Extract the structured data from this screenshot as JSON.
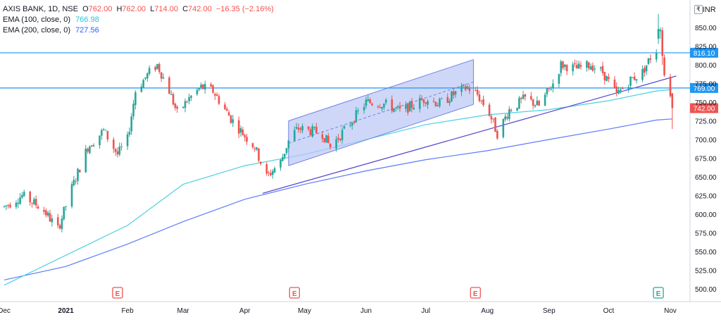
{
  "legend": {
    "symbol": "AXIS BANK, 1D, NSE",
    "ohlc": [
      {
        "label": "O",
        "value": "762.00"
      },
      {
        "label": "H",
        "value": "762.00"
      },
      {
        "label": "L",
        "value": "714.00"
      },
      {
        "label": "C",
        "value": "742.00"
      }
    ],
    "change": "−16.35 (−2.16%)",
    "ema100": {
      "label": "EMA (100, close, 0)",
      "value": "766.98",
      "color": "#26c6da"
    },
    "ema200": {
      "label": "EMA (200, close, 0)",
      "value": "727.56",
      "color": "#2962ff"
    }
  },
  "currency": "INR",
  "currency_prefix": "₹",
  "colors": {
    "up": "#26a69a",
    "down": "#ef5350",
    "hline": "#2196f3",
    "trend": "#5b4ccf",
    "channel_fill": "#b9c6f5",
    "channel_border": "#6f83e0",
    "ema100": "#4dd0e1",
    "ema200": "#5c7cfa",
    "price_tag": "#ef5350",
    "earnings": "#ef5350",
    "earnings_upcoming": "#26a69a"
  },
  "chart_data": {
    "type": "candlestick",
    "y_axis": {
      "min": 488,
      "max": 870,
      "ticks": [
        500,
        525,
        550,
        575,
        600,
        625,
        650,
        675,
        700,
        725,
        750,
        775,
        800,
        825,
        850
      ]
    },
    "x_axis": {
      "start": "2020-12-01",
      "end": "2021-11-04",
      "labels": [
        {
          "text": "Dec",
          "date": "2020-12-01"
        },
        {
          "text": "2021",
          "date": "2021-01-01"
        },
        {
          "text": "Feb",
          "date": "2021-02-01"
        },
        {
          "text": "Mar",
          "date": "2021-03-01"
        },
        {
          "text": "Apr",
          "date": "2021-04-01"
        },
        {
          "text": "May",
          "date": "2021-05-01"
        },
        {
          "text": "Jun",
          "date": "2021-06-01"
        },
        {
          "text": "Jul",
          "date": "2021-07-01"
        },
        {
          "text": "Aug",
          "date": "2021-08-01"
        },
        {
          "text": "Sep",
          "date": "2021-09-01"
        },
        {
          "text": "Oct",
          "date": "2021-10-01"
        },
        {
          "text": "Nov",
          "date": "2021-11-01"
        }
      ]
    },
    "price_anchors": [
      [
        "2020-12-01",
        610
      ],
      [
        "2020-12-10",
        625
      ],
      [
        "2020-12-20",
        608
      ],
      [
        "2020-12-28",
        580
      ],
      [
        "2021-01-04",
        635
      ],
      [
        "2021-01-12",
        690
      ],
      [
        "2021-01-20",
        712
      ],
      [
        "2021-01-27",
        680
      ],
      [
        "2021-02-01",
        700
      ],
      [
        "2021-02-05",
        765
      ],
      [
        "2021-02-12",
        790
      ],
      [
        "2021-02-16",
        800
      ],
      [
        "2021-02-22",
        765
      ],
      [
        "2021-02-26",
        735
      ],
      [
        "2021-03-04",
        755
      ],
      [
        "2021-03-10",
        770
      ],
      [
        "2021-03-16",
        765
      ],
      [
        "2021-03-25",
        728
      ],
      [
        "2021-04-01",
        705
      ],
      [
        "2021-04-06",
        690
      ],
      [
        "2021-04-12",
        650
      ],
      [
        "2021-04-19",
        670
      ],
      [
        "2021-04-24",
        705
      ],
      [
        "2021-04-28",
        715
      ],
      [
        "2021-05-10",
        708
      ],
      [
        "2021-05-14",
        690
      ],
      [
        "2021-05-24",
        722
      ],
      [
        "2021-06-01",
        750
      ],
      [
        "2021-06-10",
        748
      ],
      [
        "2021-06-18",
        738
      ],
      [
        "2021-06-24",
        745
      ],
      [
        "2021-07-01",
        755
      ],
      [
        "2021-07-08",
        748
      ],
      [
        "2021-07-16",
        762
      ],
      [
        "2021-07-22",
        770
      ],
      [
        "2021-07-27",
        760
      ],
      [
        "2021-08-02",
        735
      ],
      [
        "2021-08-06",
        708
      ],
      [
        "2021-08-12",
        740
      ],
      [
        "2021-08-20",
        755
      ],
      [
        "2021-08-27",
        745
      ],
      [
        "2021-09-03",
        775
      ],
      [
        "2021-09-07",
        800
      ],
      [
        "2021-09-15",
        795
      ],
      [
        "2021-09-22",
        800
      ],
      [
        "2021-09-28",
        790
      ],
      [
        "2021-10-05",
        760
      ],
      [
        "2021-10-12",
        780
      ],
      [
        "2021-10-18",
        790
      ],
      [
        "2021-10-22",
        810
      ],
      [
        "2021-10-25",
        820
      ],
      [
        "2021-10-27",
        845
      ],
      [
        "2021-10-28",
        800
      ],
      [
        "2021-11-01",
        758
      ],
      [
        "2021-11-02",
        742
      ]
    ],
    "last_candles": [
      {
        "date": "2021-10-26",
        "o": 835,
        "h": 868,
        "l": 828,
        "c": 848
      },
      {
        "date": "2021-10-27",
        "o": 845,
        "h": 850,
        "l": 835,
        "c": 847
      },
      {
        "date": "2021-10-28",
        "o": 846,
        "h": 850,
        "l": 800,
        "c": 812
      },
      {
        "date": "2021-10-29",
        "o": 810,
        "h": 814,
        "l": 784,
        "c": 786
      },
      {
        "date": "2021-11-01",
        "o": 784,
        "h": 788,
        "l": 756,
        "c": 758
      },
      {
        "date": "2021-11-02",
        "o": 762,
        "h": 762,
        "l": 714,
        "c": 742
      }
    ],
    "ema100_points": [
      [
        "2020-12-01",
        505
      ],
      [
        "2021-01-01",
        545
      ],
      [
        "2021-02-01",
        585
      ],
      [
        "2021-03-01",
        640
      ],
      [
        "2021-04-01",
        665
      ],
      [
        "2021-05-01",
        680
      ],
      [
        "2021-06-01",
        700
      ],
      [
        "2021-07-01",
        720
      ],
      [
        "2021-08-01",
        733
      ],
      [
        "2021-09-01",
        740
      ],
      [
        "2021-10-01",
        752
      ],
      [
        "2021-10-25",
        765
      ],
      [
        "2021-11-02",
        767
      ]
    ],
    "ema200_points": [
      [
        "2020-12-01",
        512
      ],
      [
        "2021-01-01",
        530
      ],
      [
        "2021-02-01",
        560
      ],
      [
        "2021-03-01",
        590
      ],
      [
        "2021-04-01",
        620
      ],
      [
        "2021-05-01",
        640
      ],
      [
        "2021-06-01",
        658
      ],
      [
        "2021-07-01",
        673
      ],
      [
        "2021-08-01",
        685
      ],
      [
        "2021-09-01",
        700
      ],
      [
        "2021-10-01",
        714
      ],
      [
        "2021-10-25",
        726
      ],
      [
        "2021-11-02",
        727.5
      ]
    ],
    "horizontal_levels": [
      {
        "value": 816.1,
        "label": "816.10"
      },
      {
        "value": 769.0,
        "label": "769.00"
      }
    ],
    "current_price": {
      "value": 742.0,
      "label": "742.00"
    },
    "trendline": {
      "x1": "2021-04-10",
      "y1": 628,
      "x2": "2021-11-04",
      "y2": 785
    },
    "channel": {
      "upper": [
        [
          "2021-04-23",
          725
        ],
        [
          "2021-07-25",
          807
        ]
      ],
      "lower": [
        [
          "2021-04-23",
          665
        ],
        [
          "2021-07-25",
          747
        ]
      ]
    },
    "earnings_markers": [
      {
        "date": "2021-01-27",
        "label": "E",
        "upcoming": false
      },
      {
        "date": "2021-04-26",
        "label": "E",
        "upcoming": false
      },
      {
        "date": "2021-07-26",
        "label": "E",
        "upcoming": false
      },
      {
        "date": "2021-10-26",
        "label": "E",
        "upcoming": true
      }
    ]
  }
}
